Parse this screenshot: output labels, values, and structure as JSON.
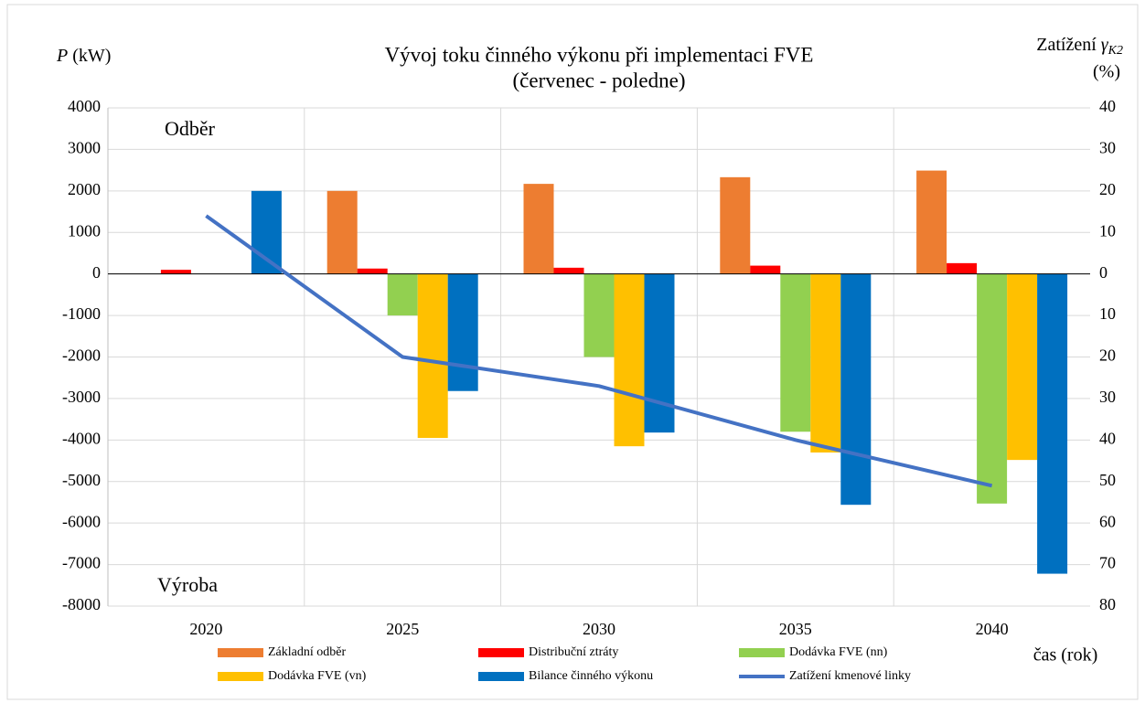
{
  "chart_data": {
    "type": "bar",
    "title": [
      "Vývoj toku činného výkonu při implementaci FVE",
      "(červenec - poledne)"
    ],
    "y_label": [
      "P",
      " (kW)"
    ],
    "y2_label": [
      "Zatížení ",
      "γ",
      "K2",
      "(%)"
    ],
    "x_label": "čas (rok)",
    "annotations": [
      "Odběr",
      "Výroba"
    ],
    "categories": [
      "2020",
      "2025",
      "2030",
      "2035",
      "2040"
    ],
    "series": [
      {
        "name": "Základní odběr",
        "color": "#ED7D31",
        "values": [
          0,
          2000,
          2170,
          2330,
          2490
        ]
      },
      {
        "name": "Distribuční ztráty",
        "color": "#FF0000",
        "values": [
          100,
          130,
          150,
          200,
          260
        ]
      },
      {
        "name": "Dodávka FVE (nn)",
        "color": "#92D050",
        "values": [
          0,
          -1000,
          -2000,
          -3800,
          -5530
        ]
      },
      {
        "name": "Dodávka FVE (vn)",
        "color": "#FFC000",
        "values": [
          0,
          -3950,
          -4150,
          -4300,
          -4480
        ]
      },
      {
        "name": "Bilance činného výkonu",
        "color": "#0070C0",
        "values": [
          2000,
          -2820,
          -3820,
          -5560,
          -7220
        ]
      },
      {
        "name": "Zatížení kmenové linky",
        "color": "#4472C4",
        "type": "line",
        "axis": "y2",
        "values": [
          14,
          -20,
          -27,
          -40,
          -51
        ]
      }
    ],
    "ylim": [
      -8000,
      4000
    ],
    "yticks": [
      -8000,
      -7000,
      -6000,
      -5000,
      -4000,
      -3000,
      -2000,
      -1000,
      0,
      1000,
      2000,
      3000,
      4000
    ],
    "y2lim": [
      -80,
      40
    ],
    "y2ticks": [
      {
        "value": -80,
        "label": "80"
      },
      {
        "value": -70,
        "label": "70"
      },
      {
        "value": -60,
        "label": "60"
      },
      {
        "value": -50,
        "label": "50"
      },
      {
        "value": -40,
        "label": "40"
      },
      {
        "value": -30,
        "label": "30"
      },
      {
        "value": -20,
        "label": "20"
      },
      {
        "value": -10,
        "label": "10"
      },
      0,
      10,
      20,
      30,
      40
    ],
    "grid": true,
    "legend": "bottom"
  }
}
